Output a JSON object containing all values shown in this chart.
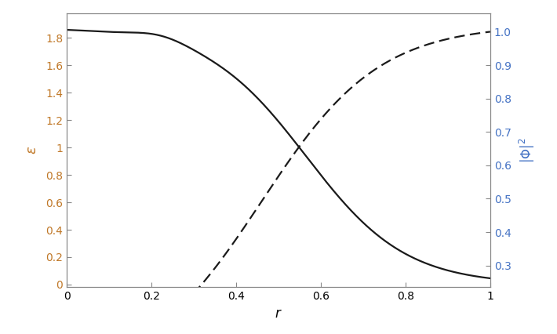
{
  "xlim": [
    0,
    1
  ],
  "ylim_left": [
    -0.02,
    1.98
  ],
  "ylim_right": [
    0.235,
    1.055
  ],
  "yticks_left": [
    0,
    0.2,
    0.4,
    0.6,
    0.8,
    1.0,
    1.2,
    1.4,
    1.6,
    1.8
  ],
  "yticks_right": [
    0.3,
    0.4,
    0.5,
    0.6,
    0.7,
    0.8,
    0.9,
    1.0
  ],
  "xticks": [
    0,
    0.2,
    0.4,
    0.6,
    0.8,
    1
  ],
  "xlabel": "r",
  "ylabel_left": "ε",
  "ylabel_right": "|Φ|²",
  "background_color": "#ffffff",
  "line_color": "#1a1a1a",
  "tick_color_left": "#c07828",
  "tick_color_right": "#4472c4",
  "tick_color_x": "#000000",
  "spine_color": "#888888",
  "figsize": [
    7.1,
    4.26
  ],
  "dpi": 100,
  "linewidth": 1.6,
  "dash_pattern": [
    6,
    3
  ]
}
